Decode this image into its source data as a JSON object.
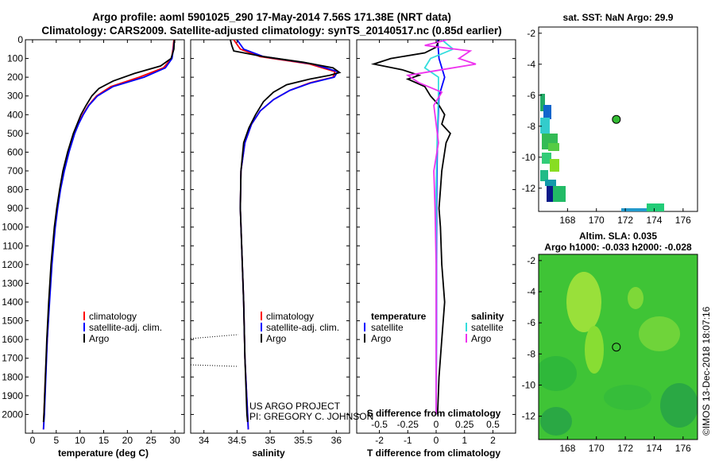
{
  "header": {
    "title_line1": "Argo profile: aoml 5901025_290 17-May-2014 7.56S 171.38E (NRT data)",
    "title_line2": "Climatology: CARS2009. Satellite-adjusted climatology: synTS_20140517.nc (0.85d earlier)"
  },
  "credits": {
    "project": "US ARGO PROJECT",
    "pi": "PI: GREGORY C. JOHNSON",
    "imos": "©IMOS 13-Dec-2018 18:07:16"
  },
  "colors": {
    "argo": "#000000",
    "climatology": "#ff0000",
    "satellite": "#0000ff",
    "sat_salinity": "#33dddd",
    "argo_salinity_diff": "#ee33ee",
    "sst_map_bg": "#ffffff",
    "sla_map_bg": "#44cc33"
  },
  "chart_data": [
    {
      "id": "temperature_profile",
      "type": "line",
      "xlabel": "temperature (deg C)",
      "ylabel": "",
      "xlim": [
        -1.5,
        32
      ],
      "ylim": [
        2100,
        0
      ],
      "x_ticks": [
        0,
        5,
        10,
        15,
        20,
        25,
        30
      ],
      "y_ticks": [
        0,
        100,
        200,
        300,
        400,
        500,
        600,
        700,
        800,
        900,
        1000,
        1100,
        1200,
        1300,
        1400,
        1500,
        1600,
        1700,
        1800,
        1900,
        2000
      ],
      "legend": [
        "climatology",
        "satellite-adj. clim.",
        "Argo"
      ],
      "series": [
        {
          "name": "climatology",
          "depth": [
            0,
            50,
            100,
            150,
            200,
            250,
            300,
            350,
            400,
            450,
            500,
            600,
            700,
            800,
            900,
            1000,
            1200,
            1400,
            1600,
            1800,
            2000,
            2080
          ],
          "values": [
            29.8,
            29.6,
            29.3,
            27.6,
            22.5,
            16.5,
            13.5,
            11.8,
            10.6,
            9.6,
            8.8,
            7.6,
            6.6,
            5.8,
            5.2,
            4.7,
            4.0,
            3.5,
            3.1,
            2.7,
            2.4,
            2.3
          ]
        },
        {
          "name": "satellite-adj. clim.",
          "depth": [
            0,
            50,
            100,
            150,
            200,
            250,
            300,
            350,
            400,
            450,
            500,
            600,
            700,
            800,
            900,
            1000,
            1200,
            1400,
            1600,
            1800,
            2000,
            2080
          ],
          "values": [
            29.9,
            29.7,
            29.4,
            28.0,
            23.5,
            17.0,
            13.7,
            11.9,
            10.7,
            9.7,
            8.9,
            7.7,
            6.7,
            5.9,
            5.3,
            4.8,
            4.1,
            3.6,
            3.1,
            2.8,
            2.5,
            2.3
          ]
        },
        {
          "name": "Argo",
          "depth": [
            0,
            50,
            100,
            140,
            180,
            220,
            260,
            300,
            350,
            400,
            450,
            500,
            600,
            700,
            800,
            900,
            1000,
            1200,
            1400,
            1600,
            1800,
            2000,
            2040
          ],
          "values": [
            29.9,
            29.8,
            29.2,
            27.0,
            21.5,
            17.0,
            14.0,
            12.5,
            11.3,
            10.2,
            9.4,
            8.6,
            7.4,
            6.4,
            5.7,
            5.1,
            4.6,
            3.9,
            3.4,
            3.0,
            2.7,
            2.4,
            2.3
          ]
        }
      ]
    },
    {
      "id": "salinity_profile",
      "type": "line",
      "xlabel": "salinity",
      "ylabel": "",
      "xlim": [
        33.8,
        36.2
      ],
      "ylim": [
        2100,
        0
      ],
      "x_ticks": [
        34,
        34.5,
        35,
        35.5,
        36
      ],
      "legend": [
        "climatology",
        "satellite-adj. clim.",
        "Argo"
      ],
      "series": [
        {
          "name": "climatology",
          "depth": [
            0,
            50,
            90,
            130,
            170,
            200,
            230,
            270,
            320,
            380,
            450,
            550,
            700,
            900,
            1100,
            1400,
            1700,
            2000,
            2080
          ],
          "values": [
            34.45,
            34.55,
            34.85,
            35.6,
            35.98,
            35.95,
            35.6,
            35.3,
            35.05,
            34.85,
            34.72,
            34.62,
            34.56,
            34.55,
            34.57,
            34.6,
            34.62,
            34.66,
            34.67
          ]
        },
        {
          "name": "satellite-adj. clim.",
          "depth": [
            0,
            50,
            90,
            130,
            170,
            200,
            230,
            270,
            320,
            380,
            450,
            550,
            700,
            900,
            1100,
            1400,
            1700,
            2000,
            2080
          ],
          "values": [
            34.5,
            34.6,
            34.9,
            35.65,
            36.02,
            35.97,
            35.62,
            35.3,
            35.05,
            34.85,
            34.72,
            34.62,
            34.56,
            34.55,
            34.57,
            34.6,
            34.62,
            34.66,
            34.67
          ]
        },
        {
          "name": "Argo",
          "depth": [
            0,
            30,
            60,
            90,
            120,
            150,
            175,
            190,
            210,
            240,
            280,
            330,
            400,
            470,
            550,
            700,
            900,
            1100,
            1400,
            1700,
            2000,
            2040
          ],
          "values": [
            34.4,
            34.42,
            34.45,
            34.9,
            35.5,
            35.95,
            36.05,
            35.9,
            35.6,
            35.25,
            35.05,
            34.9,
            34.78,
            34.68,
            34.6,
            34.56,
            34.55,
            34.57,
            34.6,
            34.62,
            34.65,
            34.66
          ]
        }
      ]
    },
    {
      "id": "difference_profile",
      "type": "line",
      "xlabel": "T difference from climatology",
      "x2label": "S difference from climatology",
      "xlim": [
        -2.8,
        2.8
      ],
      "x_ticks": [
        -2,
        -1,
        0,
        1,
        2
      ],
      "x2lim": [
        -0.7,
        0.7
      ],
      "x2_ticks": [
        -0.5,
        -0.25,
        0,
        0.25,
        0.5
      ],
      "ylim": [
        2100,
        0
      ],
      "legend": {
        "temperature_label": "temperature",
        "salinity_label": "salinity",
        "entries": [
          "satellite",
          "Argo",
          "satellite",
          "Argo"
        ]
      },
      "series": [
        {
          "name": "T satellite",
          "depth": [
            0,
            100,
            200,
            300,
            500,
            800,
            1200,
            1600,
            2000
          ],
          "values": [
            0.05,
            0.1,
            0.3,
            0.1,
            0.05,
            0.02,
            0.01,
            0.01,
            0.0
          ]
        },
        {
          "name": "T Argo",
          "depth": [
            0,
            40,
            70,
            100,
            130,
            160,
            190,
            210,
            250,
            300,
            350,
            400,
            450,
            500,
            550,
            600,
            700,
            800,
            900,
            1000,
            1200,
            1400,
            1600,
            1800,
            2000
          ],
          "values": [
            0.1,
            0.0,
            -0.4,
            -1.6,
            -2.2,
            -1.2,
            -0.6,
            -1.0,
            -0.4,
            -0.2,
            0.1,
            0.3,
            0.2,
            0.5,
            0.35,
            0.3,
            0.2,
            0.15,
            0.1,
            0.15,
            0.2,
            0.3,
            0.2,
            0.1,
            0.05
          ]
        },
        {
          "name": "S satellite",
          "depth": [
            0,
            50,
            100,
            150,
            200,
            300,
            500,
            800,
            1200,
            1600,
            2000
          ],
          "values": [
            0.05,
            0.15,
            -0.05,
            -0.1,
            0.02,
            0.02,
            0.01,
            0.0,
            0.0,
            0.0,
            0.0
          ]
        },
        {
          "name": "S Argo",
          "depth": [
            0,
            30,
            60,
            100,
            130,
            160,
            190,
            230,
            280,
            350,
            450,
            550,
            700,
            900,
            1200,
            1600,
            2000
          ],
          "values": [
            0.1,
            -0.1,
            0.3,
            0.2,
            0.35,
            0.05,
            -0.25,
            -0.15,
            0.05,
            -0.02,
            0.0,
            0.02,
            -0.02,
            -0.01,
            0.0,
            0.0,
            0.0
          ]
        }
      ]
    },
    {
      "id": "sst_map",
      "type": "heatmap",
      "title": "sat. SST: NaN Argo: 29.9",
      "xlim": [
        166,
        177
      ],
      "ylim": [
        -13.5,
        -1.6
      ],
      "x_ticks": [
        168,
        170,
        172,
        174,
        176
      ],
      "y_ticks": [
        -2,
        -4,
        -6,
        -8,
        -10,
        -12
      ],
      "argo_position": {
        "lon": 171.38,
        "lat": -7.56
      }
    },
    {
      "id": "sla_map",
      "type": "heatmap",
      "title": "Altim. SLA: 0.035",
      "subtitle": "Argo h1000: -0.033 h2000: -0.028",
      "xlim": [
        166,
        177
      ],
      "ylim": [
        -13.5,
        -1.6
      ],
      "x_ticks": [
        168,
        170,
        172,
        174,
        176
      ],
      "y_ticks": [
        -2,
        -4,
        -6,
        -8,
        -10,
        -12
      ],
      "argo_position": {
        "lon": 171.38,
        "lat": -7.56
      }
    }
  ]
}
